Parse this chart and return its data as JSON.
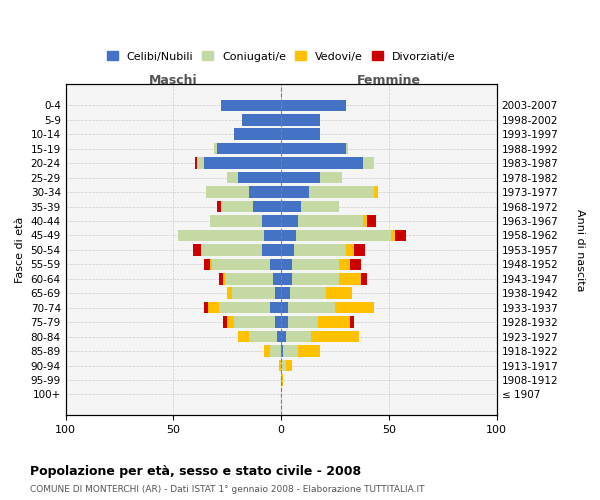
{
  "age_groups": [
    "100+",
    "95-99",
    "90-94",
    "85-89",
    "80-84",
    "75-79",
    "70-74",
    "65-69",
    "60-64",
    "55-59",
    "50-54",
    "45-49",
    "40-44",
    "35-39",
    "30-34",
    "25-29",
    "20-24",
    "15-19",
    "10-14",
    "5-9",
    "0-4"
  ],
  "birth_years": [
    "≤ 1907",
    "1908-1912",
    "1913-1917",
    "1918-1922",
    "1923-1927",
    "1928-1932",
    "1933-1937",
    "1938-1942",
    "1943-1947",
    "1948-1952",
    "1953-1957",
    "1958-1962",
    "1963-1967",
    "1968-1972",
    "1973-1977",
    "1978-1982",
    "1983-1987",
    "1988-1992",
    "1993-1997",
    "1998-2002",
    "2003-2007"
  ],
  "colors": {
    "celibe": "#4472c4",
    "coniugato": "#c5d9a4",
    "vedovo": "#ffc000",
    "divorziato": "#cc0000"
  },
  "maschi": {
    "celibe": [
      0,
      0,
      0,
      0,
      2,
      3,
      5,
      3,
      4,
      5,
      9,
      8,
      9,
      13,
      15,
      20,
      36,
      30,
      22,
      18,
      28
    ],
    "coniugato": [
      0,
      0,
      0,
      5,
      13,
      19,
      24,
      20,
      22,
      27,
      28,
      40,
      24,
      15,
      20,
      5,
      3,
      1,
      0,
      0,
      0
    ],
    "vedovo": [
      0,
      0,
      1,
      3,
      5,
      3,
      5,
      2,
      1,
      1,
      0,
      0,
      0,
      0,
      0,
      0,
      0,
      0,
      0,
      0,
      0
    ],
    "divorziato": [
      0,
      0,
      0,
      0,
      0,
      2,
      2,
      0,
      2,
      3,
      4,
      0,
      0,
      2,
      0,
      0,
      1,
      0,
      0,
      0,
      0
    ]
  },
  "femmine": {
    "nubile": [
      0,
      0,
      0,
      1,
      2,
      3,
      3,
      4,
      5,
      5,
      6,
      7,
      8,
      9,
      13,
      18,
      38,
      30,
      18,
      18,
      30
    ],
    "coniugata": [
      0,
      0,
      2,
      7,
      12,
      14,
      22,
      17,
      22,
      22,
      24,
      44,
      30,
      18,
      30,
      10,
      5,
      1,
      0,
      0,
      0
    ],
    "vedova": [
      0,
      1,
      3,
      10,
      22,
      15,
      18,
      12,
      10,
      5,
      4,
      2,
      2,
      0,
      2,
      0,
      0,
      0,
      0,
      0,
      0
    ],
    "divorziata": [
      0,
      0,
      0,
      0,
      0,
      2,
      0,
      0,
      3,
      5,
      5,
      5,
      4,
      0,
      0,
      0,
      0,
      0,
      0,
      0,
      0
    ]
  },
  "title": "Popolazione per età, sesso e stato civile - 2008",
  "subtitle": "COMUNE DI MONTERCHI (AR) - Dati ISTAT 1° gennaio 2008 - Elaborazione TUTTITALIA.IT",
  "xlabel_left": "Maschi",
  "xlabel_right": "Femmine",
  "ylabel_left": "Fasce di età",
  "ylabel_right": "Anni di nascita",
  "xlim": 100,
  "xticks": [
    100,
    50,
    0,
    50,
    100
  ],
  "background_color": "#f5f5f5",
  "grid_color": "#cccccc"
}
